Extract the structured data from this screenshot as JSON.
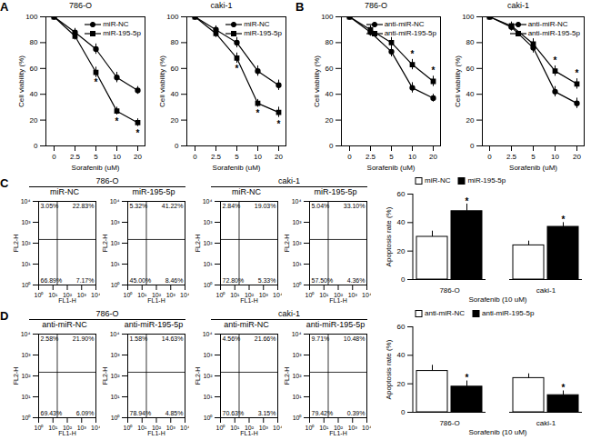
{
  "chart_data": [
    {
      "type": "line",
      "panel_label": "A",
      "title": "786-O",
      "x_label": "Sorafenib (uM)",
      "y_label": "Cell viability (%)",
      "categories": [
        "0",
        "2.5",
        "5",
        "10",
        "20"
      ],
      "ylim": [
        0,
        100
      ],
      "yticks": [
        0,
        20,
        40,
        60,
        80,
        100
      ],
      "legend": "top-right",
      "series": [
        {
          "name": "miR-NC",
          "color": "#000000",
          "marker": "circle",
          "values": [
            100,
            88,
            75,
            53,
            43
          ],
          "errors": [
            1,
            3,
            4,
            4,
            3
          ]
        },
        {
          "name": "miR-195-5p",
          "color": "#000000",
          "marker": "square",
          "values": [
            100,
            85,
            57,
            27,
            18
          ],
          "errors": [
            1,
            3,
            4,
            3,
            3
          ]
        }
      ],
      "annotations": [
        {
          "x": "5",
          "y": 49,
          "text": "*"
        },
        {
          "x": "10",
          "y": 19,
          "text": "*"
        },
        {
          "x": "20",
          "y": 10,
          "text": "*"
        }
      ]
    },
    {
      "type": "line",
      "title": "caki-1",
      "x_label": "Sorafenib (uM)",
      "y_label": "Cell viability (%)",
      "categories": [
        "0",
        "2.5",
        "5",
        "10",
        "20"
      ],
      "ylim": [
        0,
        100
      ],
      "yticks": [
        0,
        20,
        40,
        60,
        80,
        100
      ],
      "legend": "top-right",
      "series": [
        {
          "name": "miR-NC",
          "color": "#000000",
          "marker": "circle",
          "values": [
            100,
            90,
            80,
            58,
            47
          ],
          "errors": [
            1,
            3,
            4,
            4,
            4
          ]
        },
        {
          "name": "miR-195-5p",
          "color": "#000000",
          "marker": "square",
          "values": [
            100,
            87,
            68,
            33,
            26
          ],
          "errors": [
            1,
            3,
            4,
            3,
            4
          ]
        }
      ],
      "annotations": [
        {
          "x": "5",
          "y": 60,
          "text": "*"
        },
        {
          "x": "10",
          "y": 25,
          "text": "*"
        },
        {
          "x": "20",
          "y": 17,
          "text": "*"
        }
      ]
    },
    {
      "type": "line",
      "panel_label": "B",
      "title": "786-O",
      "x_label": "Sorafenib (uM)",
      "y_label": "Cell viability (%)",
      "categories": [
        "0",
        "2.5",
        "5",
        "10",
        "20"
      ],
      "ylim": [
        0,
        100
      ],
      "yticks": [
        0,
        20,
        40,
        60,
        80,
        100
      ],
      "legend": "top-right",
      "series": [
        {
          "name": "anti-miR-NC",
          "color": "#000000",
          "marker": "circle",
          "values": [
            100,
            88,
            73,
            45,
            37
          ],
          "errors": [
            1,
            3,
            4,
            4,
            3
          ]
        },
        {
          "name": "anti-miR-195-5p",
          "color": "#000000",
          "marker": "square",
          "values": [
            100,
            90,
            80,
            63,
            50
          ],
          "errors": [
            1,
            3,
            4,
            4,
            4
          ]
        }
      ],
      "annotations": [
        {
          "x": "10",
          "y": 71,
          "text": "*"
        },
        {
          "x": "20",
          "y": 58,
          "text": "*"
        }
      ]
    },
    {
      "type": "line",
      "title": "caki-1",
      "x_label": "Sorafenib (uM)",
      "y_label": "Cell viability (%)",
      "categories": [
        "0",
        "2.5",
        "5",
        "10",
        "20"
      ],
      "ylim": [
        0,
        100
      ],
      "yticks": [
        0,
        20,
        40,
        60,
        80,
        100
      ],
      "legend": "top-right",
      "series": [
        {
          "name": "anti-miR-NC",
          "color": "#000000",
          "marker": "circle",
          "values": [
            100,
            92,
            76,
            42,
            33
          ],
          "errors": [
            1,
            3,
            4,
            4,
            4
          ]
        },
        {
          "name": "anti-miR-195-5p",
          "color": "#000000",
          "marker": "square",
          "values": [
            100,
            93,
            79,
            58,
            48
          ],
          "errors": [
            1,
            3,
            4,
            4,
            4
          ]
        }
      ],
      "annotations": [
        {
          "x": "10",
          "y": 66,
          "text": "*"
        },
        {
          "x": "20",
          "y": 56,
          "text": "*"
        }
      ]
    },
    {
      "type": "scatter",
      "panel_label": "C",
      "group": "786-O",
      "title": "miR-NC",
      "x_label": "FL1-H",
      "y_label": "FL2-H",
      "log": true,
      "xlim": [
        1,
        10000
      ],
      "ylim": [
        1,
        10000
      ],
      "xticks": [
        {
          "value": 1,
          "label": "10⁰"
        },
        {
          "value": 10,
          "label": "10¹"
        },
        {
          "value": 100,
          "label": "10²"
        },
        {
          "value": 1000,
          "label": "10³"
        },
        {
          "value": 10000,
          "label": "10⁴"
        }
      ],
      "yticks": [
        {
          "value": 1,
          "label": "10⁰"
        },
        {
          "value": 10,
          "label": "10¹"
        },
        {
          "value": 100,
          "label": "10²"
        },
        {
          "value": 1000,
          "label": "10³"
        },
        {
          "value": 10000,
          "label": "10⁴"
        }
      ],
      "gates": {
        "x": 20,
        "y": 150
      },
      "quadrants": {
        "upper_left": {
          "value": 3.05,
          "label": "3.05%"
        },
        "upper_right": {
          "value": 22.83,
          "label": "22.83%"
        },
        "lower_left": {
          "value": 66.89,
          "label": "66.89%"
        },
        "lower_right": {
          "value": 7.17,
          "label": "7.17%"
        }
      }
    },
    {
      "type": "scatter",
      "group": "786-O",
      "title": "miR-195-5p",
      "x_label": "FL1-H",
      "y_label": "FL2-H",
      "log": true,
      "xlim": [
        1,
        10000
      ],
      "ylim": [
        1,
        10000
      ],
      "xticks": [
        {
          "value": 1,
          "label": "10⁰"
        },
        {
          "value": 10,
          "label": "10¹"
        },
        {
          "value": 100,
          "label": "10²"
        },
        {
          "value": 1000,
          "label": "10³"
        },
        {
          "value": 10000,
          "label": "10⁴"
        }
      ],
      "yticks": [
        {
          "value": 1,
          "label": "10⁰"
        },
        {
          "value": 10,
          "label": "10¹"
        },
        {
          "value": 100,
          "label": "10²"
        },
        {
          "value": 1000,
          "label": "10³"
        },
        {
          "value": 10000,
          "label": "10⁴"
        }
      ],
      "gates": {
        "x": 20,
        "y": 150
      },
      "quadrants": {
        "upper_left": {
          "value": 5.32,
          "label": "5.32%"
        },
        "upper_right": {
          "value": 41.22,
          "label": "41.22%"
        },
        "lower_left": {
          "value": 45.0,
          "label": "45.00%"
        },
        "lower_right": {
          "value": 8.46,
          "label": "8.46%"
        }
      }
    },
    {
      "type": "scatter",
      "group": "caki-1",
      "title": "miR-NC",
      "x_label": "FL1-H",
      "y_label": "FL2-H",
      "log": true,
      "xlim": [
        1,
        10000
      ],
      "ylim": [
        1,
        10000
      ],
      "xticks": [
        {
          "value": 1,
          "label": "10⁰"
        },
        {
          "value": 10,
          "label": "10¹"
        },
        {
          "value": 100,
          "label": "10²"
        },
        {
          "value": 1000,
          "label": "10³"
        },
        {
          "value": 10000,
          "label": "10⁴"
        }
      ],
      "yticks": [
        {
          "value": 1,
          "label": "10⁰"
        },
        {
          "value": 10,
          "label": "10¹"
        },
        {
          "value": 100,
          "label": "10²"
        },
        {
          "value": 1000,
          "label": "10³"
        },
        {
          "value": 10000,
          "label": "10⁴"
        }
      ],
      "gates": {
        "x": 20,
        "y": 150
      },
      "quadrants": {
        "upper_left": {
          "value": 2.84,
          "label": "2.84%"
        },
        "upper_right": {
          "value": 19.03,
          "label": "19.03%"
        },
        "lower_left": {
          "value": 72.8,
          "label": "72.80%"
        },
        "lower_right": {
          "value": 5.33,
          "label": "5.33%"
        }
      }
    },
    {
      "type": "scatter",
      "group": "caki-1",
      "title": "miR-195-5p",
      "x_label": "FL1-H",
      "y_label": "FL2-H",
      "log": true,
      "xlim": [
        1,
        10000
      ],
      "ylim": [
        1,
        10000
      ],
      "xticks": [
        {
          "value": 1,
          "label": "10⁰"
        },
        {
          "value": 10,
          "label": "10¹"
        },
        {
          "value": 100,
          "label": "10²"
        },
        {
          "value": 1000,
          "label": "10³"
        },
        {
          "value": 10000,
          "label": "10⁴"
        }
      ],
      "yticks": [
        {
          "value": 1,
          "label": "10⁰"
        },
        {
          "value": 10,
          "label": "10¹"
        },
        {
          "value": 100,
          "label": "10²"
        },
        {
          "value": 1000,
          "label": "10³"
        },
        {
          "value": 10000,
          "label": "10⁴"
        }
      ],
      "gates": {
        "x": 20,
        "y": 150
      },
      "quadrants": {
        "upper_left": {
          "value": 5.04,
          "label": "5.04%"
        },
        "upper_right": {
          "value": 33.1,
          "label": "33.10%"
        },
        "lower_left": {
          "value": 57.5,
          "label": "57.50%"
        },
        "lower_right": {
          "value": 4.36,
          "label": "4.36%"
        }
      }
    },
    {
      "type": "bar",
      "x_label": "Sorafenib (10 uM)",
      "y_label": "Apoptosis rate (%)",
      "categories": [
        "786-O",
        "caki-1"
      ],
      "ylim": [
        0,
        60
      ],
      "yticks": [
        0,
        20,
        40,
        60
      ],
      "legend": "top-left",
      "series": [
        {
          "name": "miR-NC",
          "color": "#ffffff",
          "values": [
            30,
            24
          ],
          "errors": [
            4,
            3
          ]
        },
        {
          "name": "miR-195-5p",
          "color": "#000000",
          "values": [
            48,
            37
          ],
          "errors": [
            5,
            3
          ]
        }
      ],
      "annotations": [
        {
          "category": "786-O",
          "series": "miR-195-5p",
          "y": 55,
          "text": "*"
        },
        {
          "category": "caki-1",
          "series": "miR-195-5p",
          "y": 42,
          "text": "*"
        }
      ]
    },
    {
      "type": "scatter",
      "panel_label": "D",
      "group": "786-O",
      "title": "anti-miR-NC",
      "x_label": "FL1-H",
      "y_label": "FL2-H",
      "log": true,
      "xlim": [
        1,
        10000
      ],
      "ylim": [
        1,
        10000
      ],
      "xticks": [
        {
          "value": 1,
          "label": "10⁰"
        },
        {
          "value": 10,
          "label": "10¹"
        },
        {
          "value": 100,
          "label": "10²"
        },
        {
          "value": 1000,
          "label": "10³"
        },
        {
          "value": 10000,
          "label": "10⁴"
        }
      ],
      "yticks": [
        {
          "value": 1,
          "label": "10⁰"
        },
        {
          "value": 10,
          "label": "10¹"
        },
        {
          "value": 100,
          "label": "10²"
        },
        {
          "value": 1000,
          "label": "10³"
        },
        {
          "value": 10000,
          "label": "10⁴"
        }
      ],
      "gates": {
        "x": 20,
        "y": 150
      },
      "quadrants": {
        "upper_left": {
          "value": 2.58,
          "label": "2.58%"
        },
        "upper_right": {
          "value": 21.9,
          "label": "21.90%"
        },
        "lower_left": {
          "value": 69.43,
          "label": "69.43%"
        },
        "lower_right": {
          "value": 6.09,
          "label": "6.09%"
        }
      }
    },
    {
      "type": "scatter",
      "group": "786-O",
      "title": "anti-miR-195-5p",
      "x_label": "FL1-H",
      "y_label": "FL2-H",
      "log": true,
      "xlim": [
        1,
        10000
      ],
      "ylim": [
        1,
        10000
      ],
      "xticks": [
        {
          "value": 1,
          "label": "10⁰"
        },
        {
          "value": 10,
          "label": "10¹"
        },
        {
          "value": 100,
          "label": "10²"
        },
        {
          "value": 1000,
          "label": "10³"
        },
        {
          "value": 10000,
          "label": "10⁴"
        }
      ],
      "yticks": [
        {
          "value": 1,
          "label": "10⁰"
        },
        {
          "value": 10,
          "label": "10¹"
        },
        {
          "value": 100,
          "label": "10²"
        },
        {
          "value": 1000,
          "label": "10³"
        },
        {
          "value": 10000,
          "label": "10⁴"
        }
      ],
      "gates": {
        "x": 20,
        "y": 150
      },
      "quadrants": {
        "upper_left": {
          "value": 1.58,
          "label": "1.58%"
        },
        "upper_right": {
          "value": 14.63,
          "label": "14.63%"
        },
        "lower_left": {
          "value": 78.94,
          "label": "78.94%"
        },
        "lower_right": {
          "value": 4.85,
          "label": "4.85%"
        }
      }
    },
    {
      "type": "scatter",
      "group": "caki-1",
      "title": "anti-miR-NC",
      "x_label": "FL1-H",
      "y_label": "FL2-H",
      "log": true,
      "xlim": [
        1,
        10000
      ],
      "ylim": [
        1,
        10000
      ],
      "xticks": [
        {
          "value": 1,
          "label": "10⁰"
        },
        {
          "value": 10,
          "label": "10¹"
        },
        {
          "value": 100,
          "label": "10²"
        },
        {
          "value": 1000,
          "label": "10³"
        },
        {
          "value": 10000,
          "label": "10⁴"
        }
      ],
      "yticks": [
        {
          "value": 1,
          "label": "10⁰"
        },
        {
          "value": 10,
          "label": "10¹"
        },
        {
          "value": 100,
          "label": "10²"
        },
        {
          "value": 1000,
          "label": "10³"
        },
        {
          "value": 10000,
          "label": "10⁴"
        }
      ],
      "gates": {
        "x": 20,
        "y": 150
      },
      "quadrants": {
        "upper_left": {
          "value": 4.56,
          "label": "4.56%"
        },
        "upper_right": {
          "value": 21.66,
          "label": "21.66%"
        },
        "lower_left": {
          "value": 70.63,
          "label": "70.63%"
        },
        "lower_right": {
          "value": 3.15,
          "label": "3.15%"
        }
      }
    },
    {
      "type": "scatter",
      "group": "caki-1",
      "title": "anti-miR-195-5p",
      "x_label": "FL1-H",
      "y_label": "FL2-H",
      "log": true,
      "xlim": [
        1,
        10000
      ],
      "ylim": [
        1,
        10000
      ],
      "xticks": [
        {
          "value": 1,
          "label": "10⁰"
        },
        {
          "value": 10,
          "label": "10¹"
        },
        {
          "value": 100,
          "label": "10²"
        },
        {
          "value": 1000,
          "label": "10³"
        },
        {
          "value": 10000,
          "label": "10⁴"
        }
      ],
      "yticks": [
        {
          "value": 1,
          "label": "10⁰"
        },
        {
          "value": 10,
          "label": "10¹"
        },
        {
          "value": 100,
          "label": "10²"
        },
        {
          "value": 1000,
          "label": "10³"
        },
        {
          "value": 10000,
          "label": "10⁴"
        }
      ],
      "gates": {
        "x": 20,
        "y": 150
      },
      "quadrants": {
        "upper_left": {
          "value": 9.71,
          "label": "9.71%"
        },
        "upper_right": {
          "value": 10.48,
          "label": "10.48%"
        },
        "lower_left": {
          "value": 79.42,
          "label": "79.42%"
        },
        "lower_right": {
          "value": 0.39,
          "label": "0.39%"
        }
      }
    },
    {
      "type": "bar",
      "x_label": "Sorafenib (10 uM)",
      "y_label": "Apoptosis rate (%)",
      "categories": [
        "786-O",
        "caki-1"
      ],
      "ylim": [
        0,
        60
      ],
      "yticks": [
        0,
        20,
        40,
        60
      ],
      "legend": "top-left",
      "series": [
        {
          "name": "anti-miR-NC",
          "color": "#ffffff",
          "values": [
            29,
            24
          ],
          "errors": [
            4,
            3
          ]
        },
        {
          "name": "anti-miR-195-5p",
          "color": "#000000",
          "values": [
            18,
            12
          ],
          "errors": [
            4,
            3
          ]
        }
      ],
      "annotations": [
        {
          "category": "786-O",
          "series": "anti-miR-195-5p",
          "y": 24,
          "text": "*"
        },
        {
          "category": "caki-1",
          "series": "anti-miR-195-5p",
          "y": 17,
          "text": "*"
        }
      ]
    }
  ]
}
